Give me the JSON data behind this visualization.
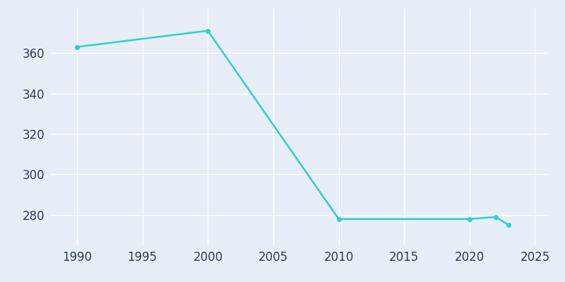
{
  "years": [
    1990,
    2000,
    2010,
    2020,
    2022,
    2023
  ],
  "population": [
    363,
    371,
    278,
    278,
    279,
    275
  ],
  "line_color": "#2ECFCF",
  "marker_color": "#2ECFCF",
  "background_color": "#E8EEF7",
  "grid_color": "#FFFFFF",
  "xlim": [
    1988,
    2026
  ],
  "ylim": [
    265,
    382
  ],
  "yticks": [
    280,
    300,
    320,
    340,
    360
  ],
  "xticks": [
    1990,
    1995,
    2000,
    2005,
    2010,
    2015,
    2020,
    2025
  ],
  "tick_label_color": "#2E3A59",
  "tick_fontsize": 12,
  "linewidth": 1.8,
  "markersize": 4
}
